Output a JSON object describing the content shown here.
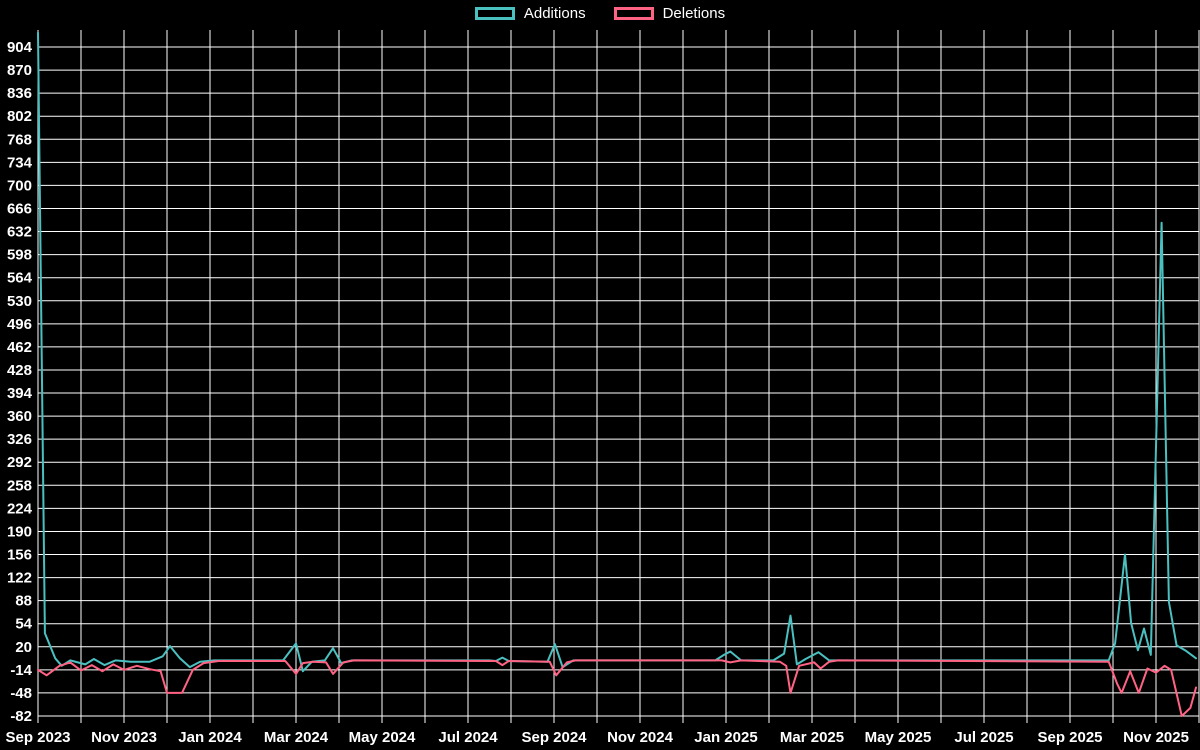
{
  "chart_data": {
    "type": "line",
    "title": "",
    "background": "#000000",
    "grid_color": "#ffffff",
    "grid": true,
    "legend_position": "top",
    "legend": [
      {
        "label": "Additions",
        "color": "#4bc0c0"
      },
      {
        "label": "Deletions",
        "color": "#ff6384"
      }
    ],
    "x_axis": {
      "unit": "months-since-sep-2023",
      "range": [
        0,
        27
      ],
      "gridline_step": 1,
      "tick_positions": [
        0,
        2,
        4,
        6,
        8,
        10,
        12,
        14,
        16,
        18,
        20,
        22,
        24,
        26
      ],
      "tick_labels": [
        "Sep 2023",
        "Nov 2023",
        "Jan 2024",
        "Mar 2024",
        "May 2024",
        "Jul 2024",
        "Sep 2024",
        "Nov 2024",
        "Jan 2025",
        "Mar 2025",
        "May 2025",
        "Jul 2025",
        "Sep 2025",
        "Nov 2025"
      ]
    },
    "y_axis": {
      "range": [
        -82,
        904
      ],
      "tick_step": 34,
      "ticks": [
        -82,
        -48,
        -14,
        20,
        54,
        88,
        122,
        156,
        190,
        224,
        258,
        292,
        326,
        360,
        394,
        428,
        462,
        496,
        530,
        564,
        598,
        632,
        666,
        700,
        734,
        768,
        802,
        836,
        870,
        904
      ]
    },
    "series": [
      {
        "name": "Additions",
        "color": "#4bc0c0",
        "points": [
          [
            0.0,
            925
          ],
          [
            0.16,
            40
          ],
          [
            0.4,
            3
          ],
          [
            0.55,
            -8
          ],
          [
            0.75,
            0
          ],
          [
            1.1,
            -6
          ],
          [
            1.3,
            2
          ],
          [
            1.55,
            -7
          ],
          [
            1.8,
            0
          ],
          [
            2.15,
            -2
          ],
          [
            2.6,
            -2
          ],
          [
            2.9,
            6
          ],
          [
            3.07,
            21
          ],
          [
            3.3,
            3
          ],
          [
            3.53,
            -10
          ],
          [
            3.77,
            -2
          ],
          [
            4.1,
            0
          ],
          [
            5.7,
            0
          ],
          [
            6.0,
            25
          ],
          [
            6.16,
            -16
          ],
          [
            6.37,
            -2
          ],
          [
            6.67,
            0
          ],
          [
            6.86,
            18
          ],
          [
            7.05,
            -4
          ],
          [
            7.3,
            0
          ],
          [
            10.5,
            0
          ],
          [
            10.65,
            -1
          ],
          [
            10.8,
            4
          ],
          [
            10.95,
            -1
          ],
          [
            11.85,
            -2
          ],
          [
            12.02,
            24
          ],
          [
            12.2,
            -10
          ],
          [
            12.45,
            0
          ],
          [
            15.75,
            0
          ],
          [
            15.95,
            8
          ],
          [
            16.1,
            13
          ],
          [
            16.35,
            0
          ],
          [
            17.1,
            0
          ],
          [
            17.35,
            10
          ],
          [
            17.5,
            66
          ],
          [
            17.65,
            -6
          ],
          [
            17.85,
            2
          ],
          [
            18.15,
            12
          ],
          [
            18.4,
            0
          ],
          [
            24.9,
            0
          ],
          [
            25.05,
            25
          ],
          [
            25.28,
            156
          ],
          [
            25.42,
            55
          ],
          [
            25.58,
            15
          ],
          [
            25.72,
            47
          ],
          [
            25.88,
            8
          ],
          [
            26.13,
            645
          ],
          [
            26.3,
            86
          ],
          [
            26.48,
            22
          ],
          [
            26.7,
            14
          ],
          [
            26.93,
            3
          ]
        ]
      },
      {
        "name": "Deletions",
        "color": "#ff6384",
        "points": [
          [
            0.0,
            -14
          ],
          [
            0.2,
            -22
          ],
          [
            0.5,
            -8
          ],
          [
            0.75,
            -3
          ],
          [
            1.0,
            -15
          ],
          [
            1.25,
            -7
          ],
          [
            1.5,
            -16
          ],
          [
            1.75,
            -6
          ],
          [
            2.0,
            -14
          ],
          [
            2.3,
            -8
          ],
          [
            2.6,
            -13
          ],
          [
            2.85,
            -16
          ],
          [
            3.0,
            -48
          ],
          [
            3.35,
            -48
          ],
          [
            3.6,
            -14
          ],
          [
            3.85,
            -4
          ],
          [
            4.2,
            -1
          ],
          [
            5.75,
            -1
          ],
          [
            6.0,
            -20
          ],
          [
            6.16,
            -4
          ],
          [
            6.4,
            -2
          ],
          [
            6.7,
            -3
          ],
          [
            6.86,
            -20
          ],
          [
            7.1,
            -3
          ],
          [
            7.35,
            0
          ],
          [
            10.5,
            -1
          ],
          [
            10.65,
            -1
          ],
          [
            10.8,
            -7
          ],
          [
            10.95,
            -1
          ],
          [
            11.9,
            -2
          ],
          [
            12.05,
            -22
          ],
          [
            12.3,
            -3
          ],
          [
            12.5,
            0
          ],
          [
            15.9,
            0
          ],
          [
            16.1,
            -3
          ],
          [
            16.35,
            0
          ],
          [
            17.25,
            -2
          ],
          [
            17.4,
            -8
          ],
          [
            17.5,
            -48
          ],
          [
            17.7,
            -8
          ],
          [
            18.05,
            -3
          ],
          [
            18.2,
            -12
          ],
          [
            18.4,
            -2
          ],
          [
            18.6,
            0
          ],
          [
            24.9,
            -2
          ],
          [
            25.1,
            -35
          ],
          [
            25.2,
            -48
          ],
          [
            25.4,
            -16
          ],
          [
            25.6,
            -48
          ],
          [
            25.8,
            -12
          ],
          [
            26.0,
            -18
          ],
          [
            26.2,
            -8
          ],
          [
            26.35,
            -14
          ],
          [
            26.6,
            -82
          ],
          [
            26.8,
            -70
          ],
          [
            26.93,
            -40
          ]
        ]
      }
    ]
  }
}
